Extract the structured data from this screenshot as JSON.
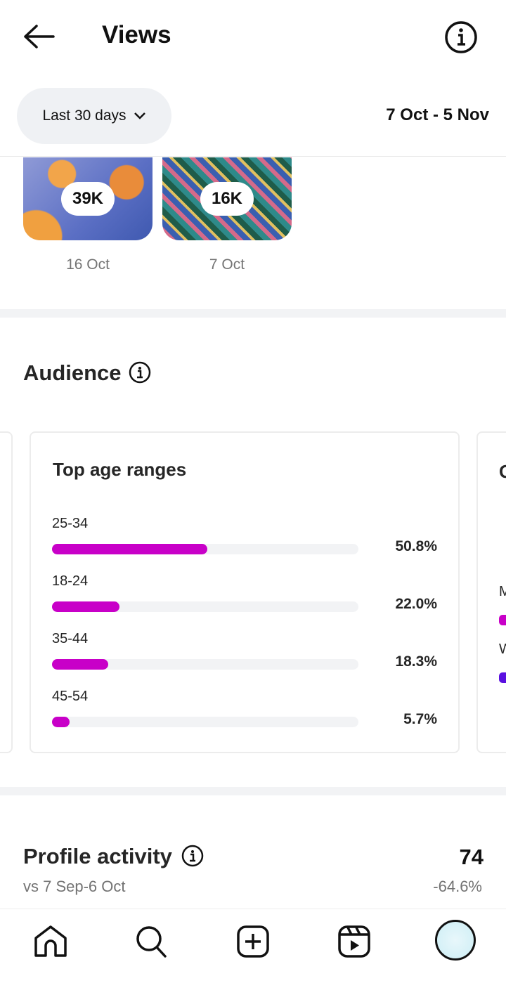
{
  "header": {
    "title": "Views",
    "back_icon": "arrow-left-icon",
    "info_icon": "info-icon"
  },
  "filter": {
    "period_label": "Last 30 days",
    "date_range": "7 Oct - 5 Nov"
  },
  "top_content": [
    {
      "views": "39K",
      "date": "16 Oct"
    },
    {
      "views": "16K",
      "date": "7 Oct"
    }
  ],
  "audience": {
    "title": "Audience",
    "age_card": {
      "title": "Top age ranges",
      "accent": "#c800c8",
      "rows": [
        {
          "label": "25-34",
          "percent": 50.8,
          "display": "50.8%"
        },
        {
          "label": "18-24",
          "percent": 22.0,
          "display": "22.0%"
        },
        {
          "label": "35-44",
          "percent": 18.3,
          "display": "18.3%"
        },
        {
          "label": "45-54",
          "percent": 5.7,
          "display": "5.7%"
        }
      ]
    },
    "next_card": {
      "title_initial": "G",
      "row1_initial": "M",
      "row2_initial": "W",
      "colors": [
        "#c800c8",
        "#5a10e0"
      ]
    }
  },
  "profile_activity": {
    "title": "Profile activity",
    "value": "74",
    "comparison": "vs 7 Sep-6 Oct",
    "change": "-64.6%"
  },
  "bottom_nav": [
    "home-icon",
    "search-icon",
    "create-icon",
    "reels-icon",
    "profile-avatar"
  ]
}
